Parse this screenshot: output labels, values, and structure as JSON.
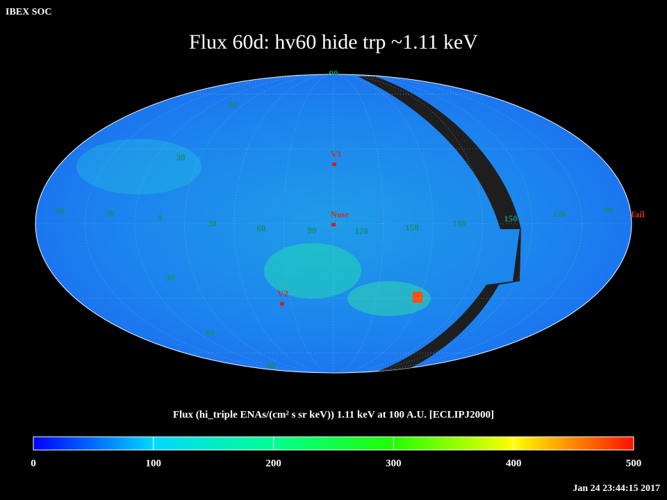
{
  "header": {
    "source": "IBEX SOC",
    "title": "Flux   60d: hv60 hide trp ~1.11 keV",
    "timestamp": "Jan 24 23:44:15 2017"
  },
  "map": {
    "meridian_labels": [
      "60",
      "30",
      "0",
      "30",
      "60",
      "90",
      "120",
      "150",
      "180",
      "150",
      "120",
      "90"
    ],
    "parallel_labels": [
      "90",
      "60",
      "30",
      "30",
      "60",
      "90"
    ],
    "markers": [
      "V1",
      "Nose",
      "V2",
      "Tail"
    ]
  },
  "colorbar": {
    "label": "Flux (hi_triple ENAs/(cm² s sr keV))  1.11 keV at 100 A.U. [ECLIPJ2000]",
    "lim": [
      0,
      500
    ],
    "ticks": [
      0,
      100,
      200,
      300,
      400,
      500
    ]
  }
}
